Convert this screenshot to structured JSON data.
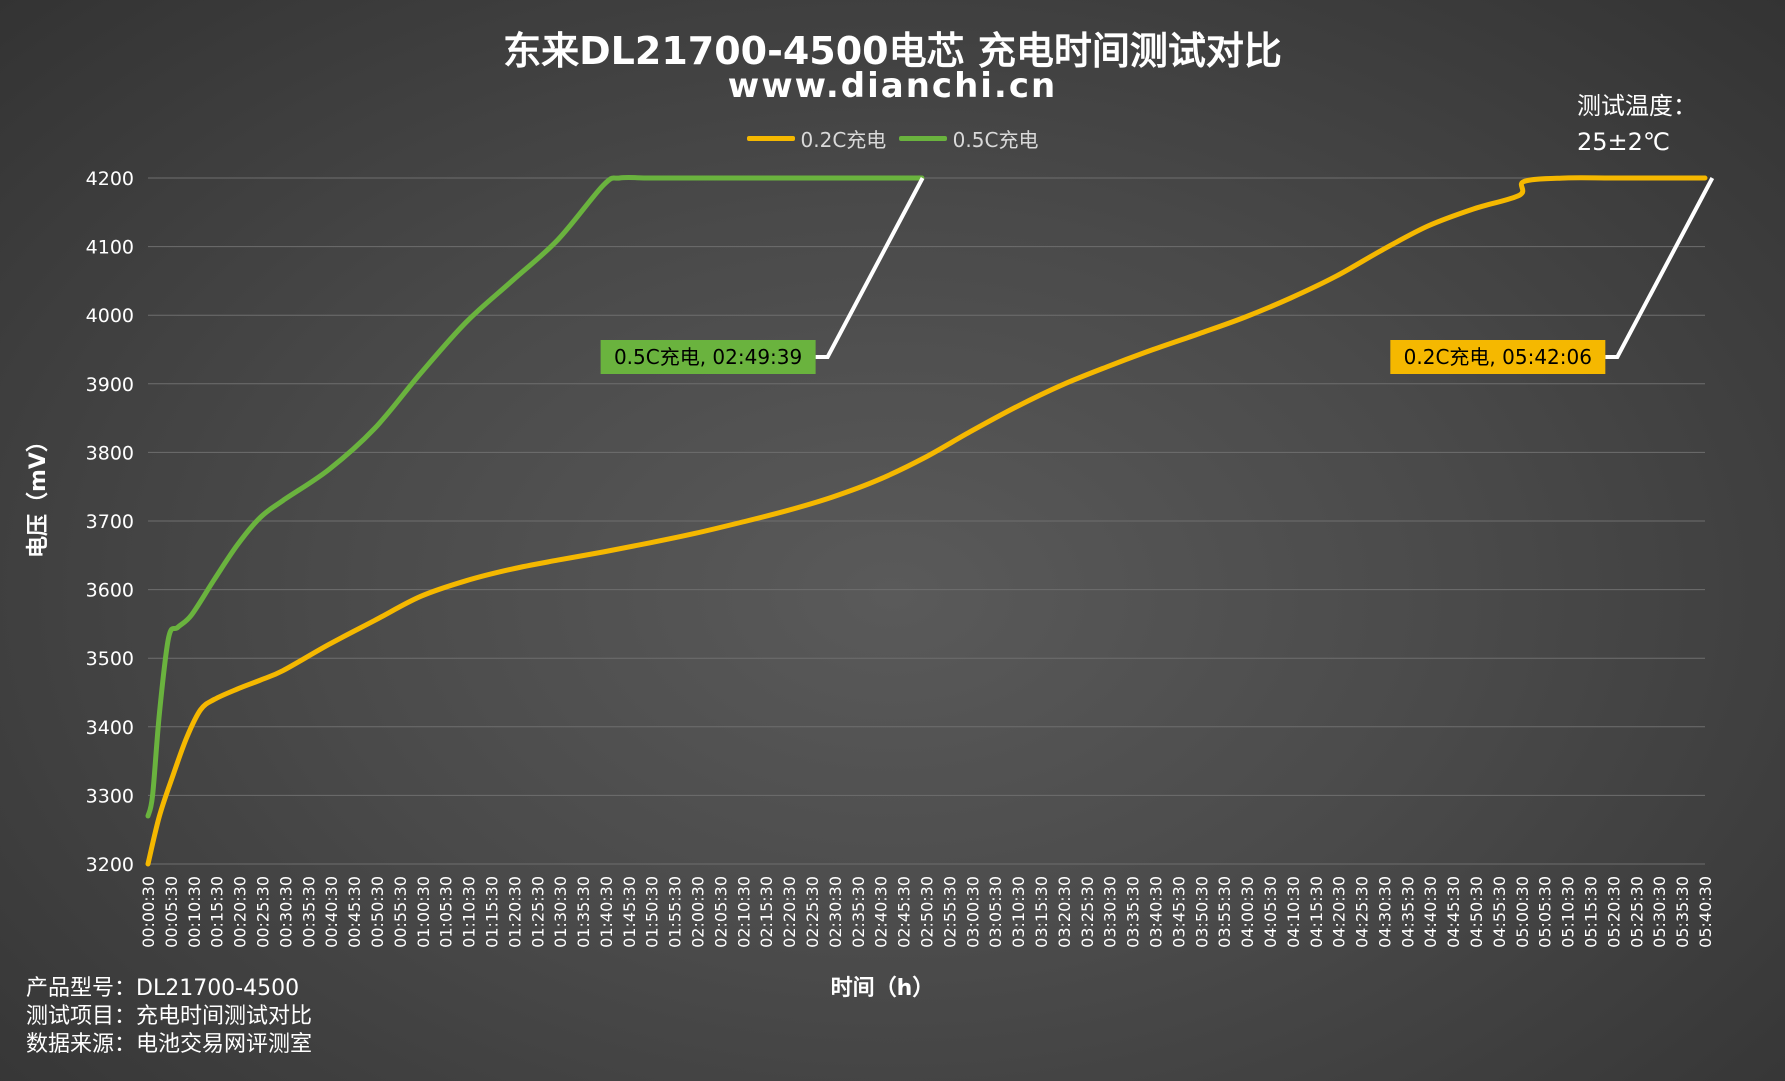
{
  "header": {
    "title": "东来DL21700-4500电芯 充电时间测试对比",
    "subtitle": "www.dianchi.cn"
  },
  "temperature": {
    "line1": "测试温度：",
    "line2": "25±2℃"
  },
  "footer": {
    "model": "产品型号：DL21700-4500",
    "test_item": "测试项目：充电时间测试对比",
    "source": "数据来源：电池交易网评测室"
  },
  "colors": {
    "series_02c": "#f5b800",
    "series_05c": "#6ab33e",
    "grid": "#6e6e6e",
    "leader": "#ffffff"
  },
  "chart_data": {
    "type": "line",
    "title": "东来DL21700-4500电芯 充电时间测试对比",
    "xlabel": "时间（h）",
    "ylabel": "电压（mV）",
    "ylim": [
      3200,
      4200
    ],
    "yticks": [
      3200,
      3300,
      3400,
      3500,
      3600,
      3700,
      3800,
      3900,
      4000,
      4100,
      4200
    ],
    "x_unit": "minutes since 00:00:00",
    "xlim": [
      0.5,
      340.5
    ],
    "xtick_step_min": 5,
    "grid": true,
    "legend_position": "top-center",
    "series": [
      {
        "name": "0.2C充电",
        "color": "#f5b800",
        "x": [
          0.5,
          3,
          6,
          9,
          12,
          15,
          20,
          25,
          30,
          40,
          50,
          60,
          70,
          80,
          90,
          100,
          110,
          120,
          130,
          140,
          150,
          160,
          170,
          180,
          190,
          200,
          210,
          220,
          230,
          240,
          250,
          260,
          270,
          280,
          290,
          300,
          301,
          310,
          320,
          330,
          340.5
        ],
        "y": [
          3200,
          3270,
          3330,
          3385,
          3425,
          3440,
          3455,
          3468,
          3482,
          3520,
          3555,
          3590,
          3613,
          3630,
          3643,
          3655,
          3668,
          3682,
          3698,
          3715,
          3735,
          3760,
          3792,
          3830,
          3866,
          3898,
          3925,
          3950,
          3973,
          3997,
          4025,
          4057,
          4095,
          4130,
          4155,
          4175,
          4195,
          4200,
          4200,
          4200,
          4200
        ]
      },
      {
        "name": "0.5C充电",
        "color": "#6ab33e",
        "x": [
          0.5,
          1.5,
          3,
          5,
          7,
          10,
          15,
          20,
          25,
          30,
          40,
          50,
          60,
          70,
          80,
          90,
          100,
          103.5,
          110,
          120,
          130,
          140,
          150,
          160,
          169.5
        ],
        "y": [
          3270,
          3300,
          3420,
          3530,
          3545,
          3563,
          3615,
          3665,
          3705,
          3730,
          3775,
          3835,
          3915,
          3990,
          4050,
          4110,
          4190,
          4200,
          4200,
          4200,
          4200,
          4200,
          4200,
          4200,
          4200
        ]
      }
    ],
    "annotations": [
      {
        "text": "0.5C充电, 02:49:39",
        "series": "0.5C充电",
        "x": 169.65,
        "y": 4200,
        "bg": "#6ab33e"
      },
      {
        "text": "0.2C充电, 05:42:06",
        "series": "0.2C充电",
        "x": 342.1,
        "y": 4200,
        "bg": "#f5b800"
      }
    ]
  }
}
